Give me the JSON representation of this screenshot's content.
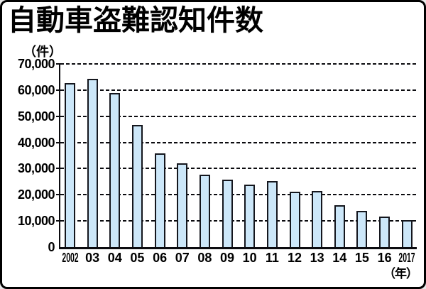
{
  "chart_data": {
    "type": "bar",
    "title": "自動車盗難認知件数",
    "y_unit": "（件）",
    "x_unit": "（年）",
    "categories": [
      "2002",
      "03",
      "04",
      "05",
      "06",
      "07",
      "08",
      "09",
      "10",
      "11",
      "12",
      "13",
      "14",
      "15",
      "16",
      "2017"
    ],
    "values": [
      62700,
      64300,
      58800,
      46700,
      35900,
      31900,
      27700,
      25900,
      23800,
      25300,
      21200,
      21500,
      16100,
      13800,
      11600,
      10200
    ],
    "ylim": [
      0,
      70000
    ],
    "yticks": [
      0,
      10000,
      20000,
      30000,
      40000,
      50000,
      60000,
      70000
    ],
    "ytick_labels": [
      "0",
      "10,000",
      "20,000",
      "30,000",
      "40,000",
      "50,000",
      "60,000",
      "70,000"
    ],
    "grid": "horizontal-dashed",
    "legend": "none",
    "bar_fill_color": "#cce7f9",
    "bar_border_color": "#14161d",
    "axis_color": "#0b0b0f",
    "background_color": "#ffffff"
  }
}
